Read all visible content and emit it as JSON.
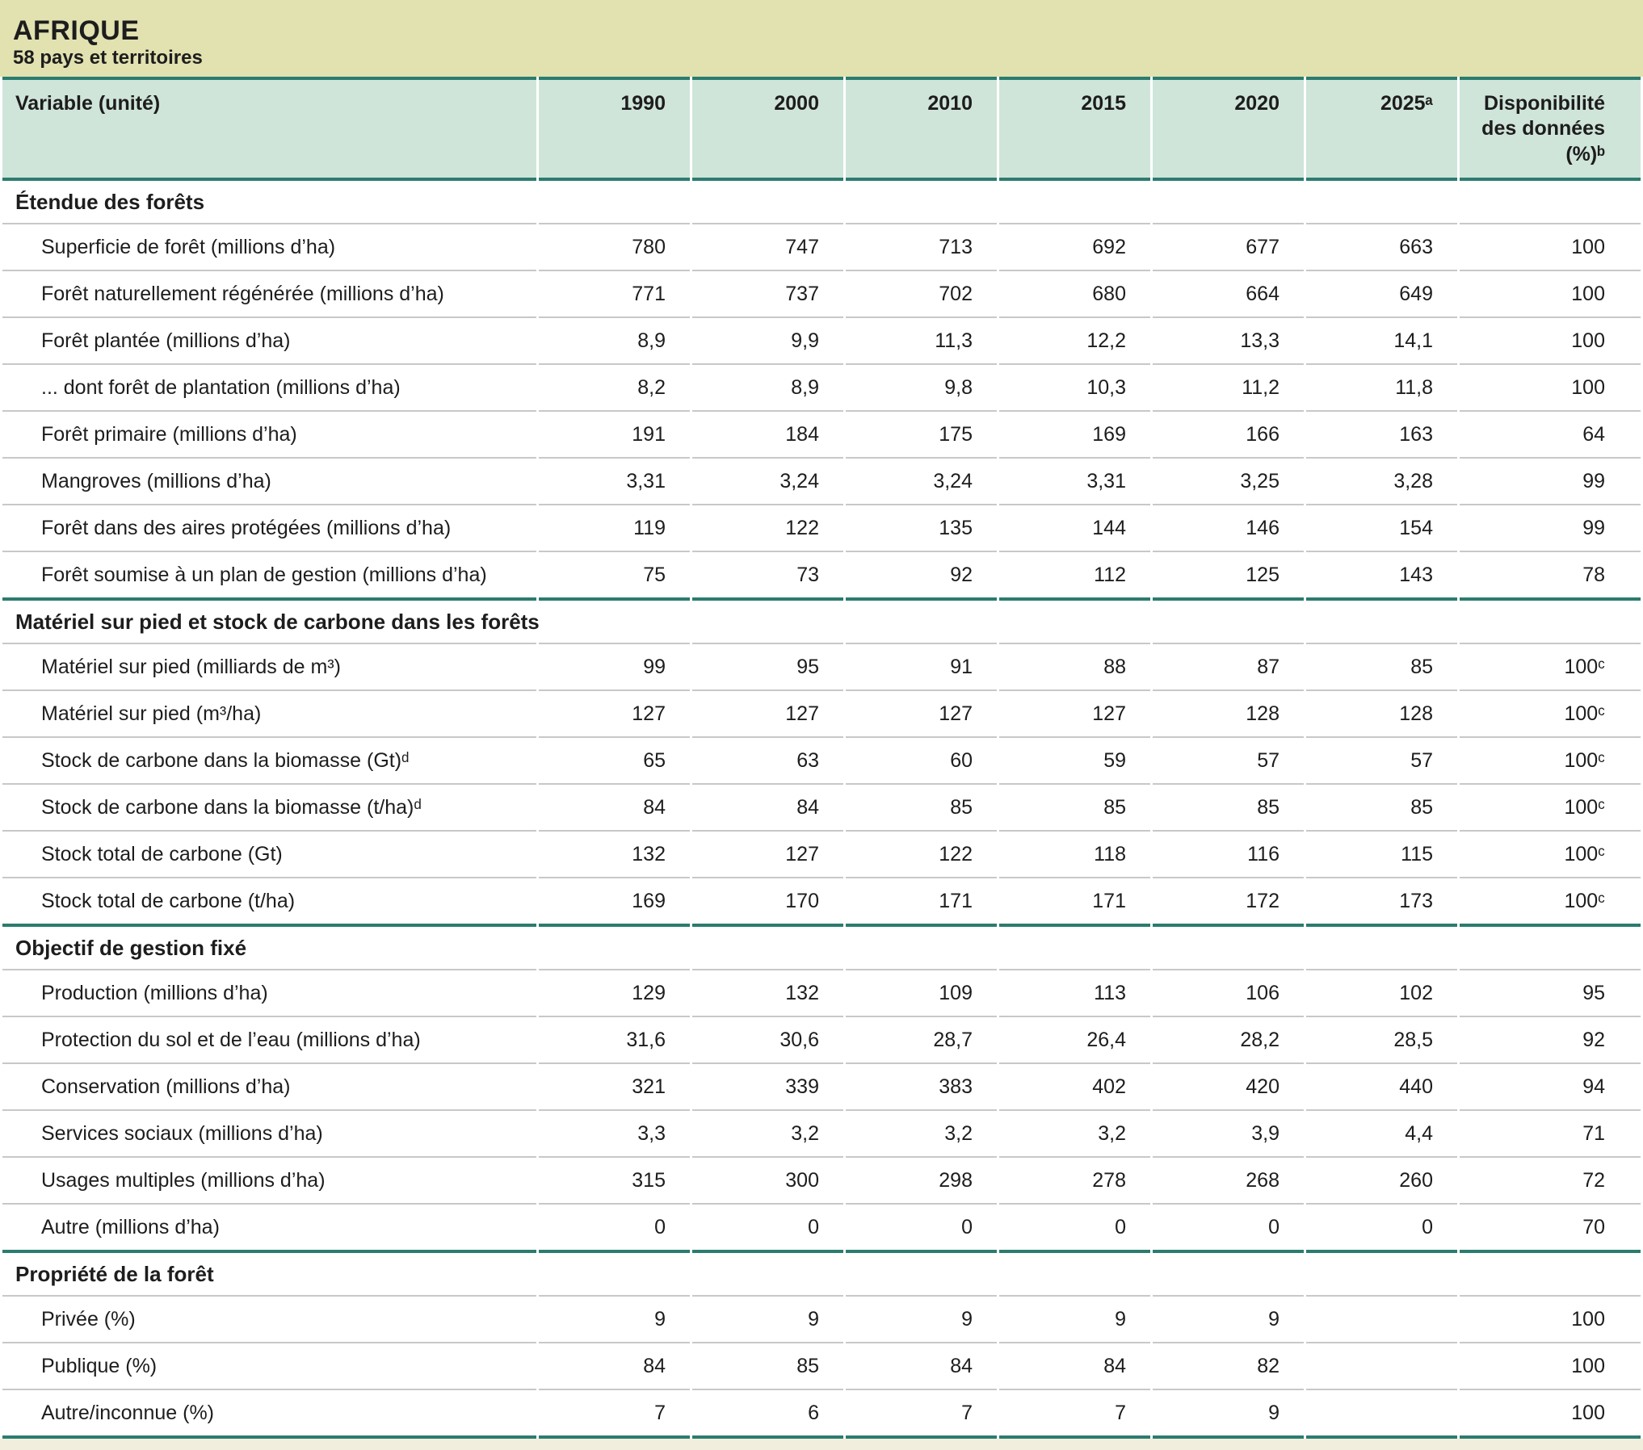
{
  "title": {
    "region": "AFRIQUE",
    "subtitle": "58 pays et territoires"
  },
  "table": {
    "columns": [
      "Variable (unité)",
      "1990",
      "2000",
      "2010",
      "2015",
      "2020",
      "2025ᵃ",
      "Disponibilité des données (%)ᵇ"
    ],
    "sections": [
      {
        "label": "Étendue des forêts",
        "rows": [
          {
            "label": "Superficie de forêt (millions d’ha)",
            "values": [
              "780",
              "747",
              "713",
              "692",
              "677",
              "663",
              "100"
            ]
          },
          {
            "label": "Forêt naturellement régénérée (millions d’ha)",
            "values": [
              "771",
              "737",
              "702",
              "680",
              "664",
              "649",
              "100"
            ]
          },
          {
            "label": "Forêt plantée (millions d’ha)",
            "values": [
              "8,9",
              "9,9",
              "11,3",
              "12,2",
              "13,3",
              "14,1",
              "100"
            ]
          },
          {
            "label": "... dont forêt de plantation (millions d’ha)",
            "values": [
              "8,2",
              "8,9",
              "9,8",
              "10,3",
              "11,2",
              "11,8",
              "100"
            ]
          },
          {
            "label": "Forêt primaire (millions d’ha)",
            "values": [
              "191",
              "184",
              "175",
              "169",
              "166",
              "163",
              "64"
            ]
          },
          {
            "label": "Mangroves (millions d’ha)",
            "values": [
              "3,31",
              "3,24",
              "3,24",
              "3,31",
              "3,25",
              "3,28",
              "99"
            ]
          },
          {
            "label": "Forêt dans des aires protégées (millions d’ha)",
            "values": [
              "119",
              "122",
              "135",
              "144",
              "146",
              "154",
              "99"
            ]
          },
          {
            "label": "Forêt soumise à un plan de gestion (millions d’ha)",
            "values": [
              "75",
              "73",
              "92",
              "112",
              "125",
              "143",
              "78"
            ]
          }
        ]
      },
      {
        "label": "Matériel sur pied et stock de carbone dans les forêts",
        "rows": [
          {
            "label": "Matériel sur pied (milliards de m³)",
            "values": [
              "99",
              "95",
              "91",
              "88",
              "87",
              "85",
              "100ᶜ"
            ]
          },
          {
            "label": "Matériel sur pied (m³/ha)",
            "values": [
              "127",
              "127",
              "127",
              "127",
              "128",
              "128",
              "100ᶜ"
            ]
          },
          {
            "label": "Stock de carbone dans la biomasse (Gt)ᵈ",
            "values": [
              "65",
              "63",
              "60",
              "59",
              "57",
              "57",
              "100ᶜ"
            ]
          },
          {
            "label": "Stock de carbone dans la biomasse (t/ha)ᵈ",
            "values": [
              "84",
              "84",
              "85",
              "85",
              "85",
              "85",
              "100ᶜ"
            ]
          },
          {
            "label": "Stock total de carbone (Gt)",
            "values": [
              "132",
              "127",
              "122",
              "118",
              "116",
              "115",
              "100ᶜ"
            ]
          },
          {
            "label": "Stock total de carbone (t/ha)",
            "values": [
              "169",
              "170",
              "171",
              "171",
              "172",
              "173",
              "100ᶜ"
            ]
          }
        ]
      },
      {
        "label": "Objectif de gestion fixé",
        "rows": [
          {
            "label": "Production (millions d’ha)",
            "values": [
              "129",
              "132",
              "109",
              "113",
              "106",
              "102",
              "95"
            ]
          },
          {
            "label": "Protection du sol et de l’eau (millions d’ha)",
            "values": [
              "31,6",
              "30,6",
              "28,7",
              "26,4",
              "28,2",
              "28,5",
              "92"
            ]
          },
          {
            "label": "Conservation (millions d’ha)",
            "values": [
              "321",
              "339",
              "383",
              "402",
              "420",
              "440",
              "94"
            ]
          },
          {
            "label": "Services sociaux (millions d’ha)",
            "values": [
              "3,3",
              "3,2",
              "3,2",
              "3,2",
              "3,9",
              "4,4",
              "71"
            ]
          },
          {
            "label": "Usages multiples (millions d’ha)",
            "values": [
              "315",
              "300",
              "298",
              "278",
              "268",
              "260",
              "72"
            ]
          },
          {
            "label": "Autre (millions d’ha)",
            "values": [
              "0",
              "0",
              "0",
              "0",
              "0",
              "0",
              "70"
            ]
          }
        ]
      },
      {
        "label": "Propriété de la forêt",
        "rows": [
          {
            "label": "Privée (%)",
            "values": [
              "9",
              "9",
              "9",
              "9",
              "9",
              "",
              "100"
            ]
          },
          {
            "label": "Publique (%)",
            "values": [
              "84",
              "85",
              "84",
              "84",
              "82",
              "",
              "100"
            ]
          },
          {
            "label": "Autre/inconnue (%)",
            "values": [
              "7",
              "6",
              "7",
              "7",
              "9",
              "",
              "100"
            ]
          }
        ]
      }
    ]
  },
  "colors": {
    "title_bar_bg": "#e2e1b0",
    "header_bg": "#d0e5da",
    "teal_rule": "#2b7c6f",
    "row_separator": "#c8c8c8",
    "bottom_strip_bg": "#f1eedd",
    "text": "#1d1d1d"
  }
}
